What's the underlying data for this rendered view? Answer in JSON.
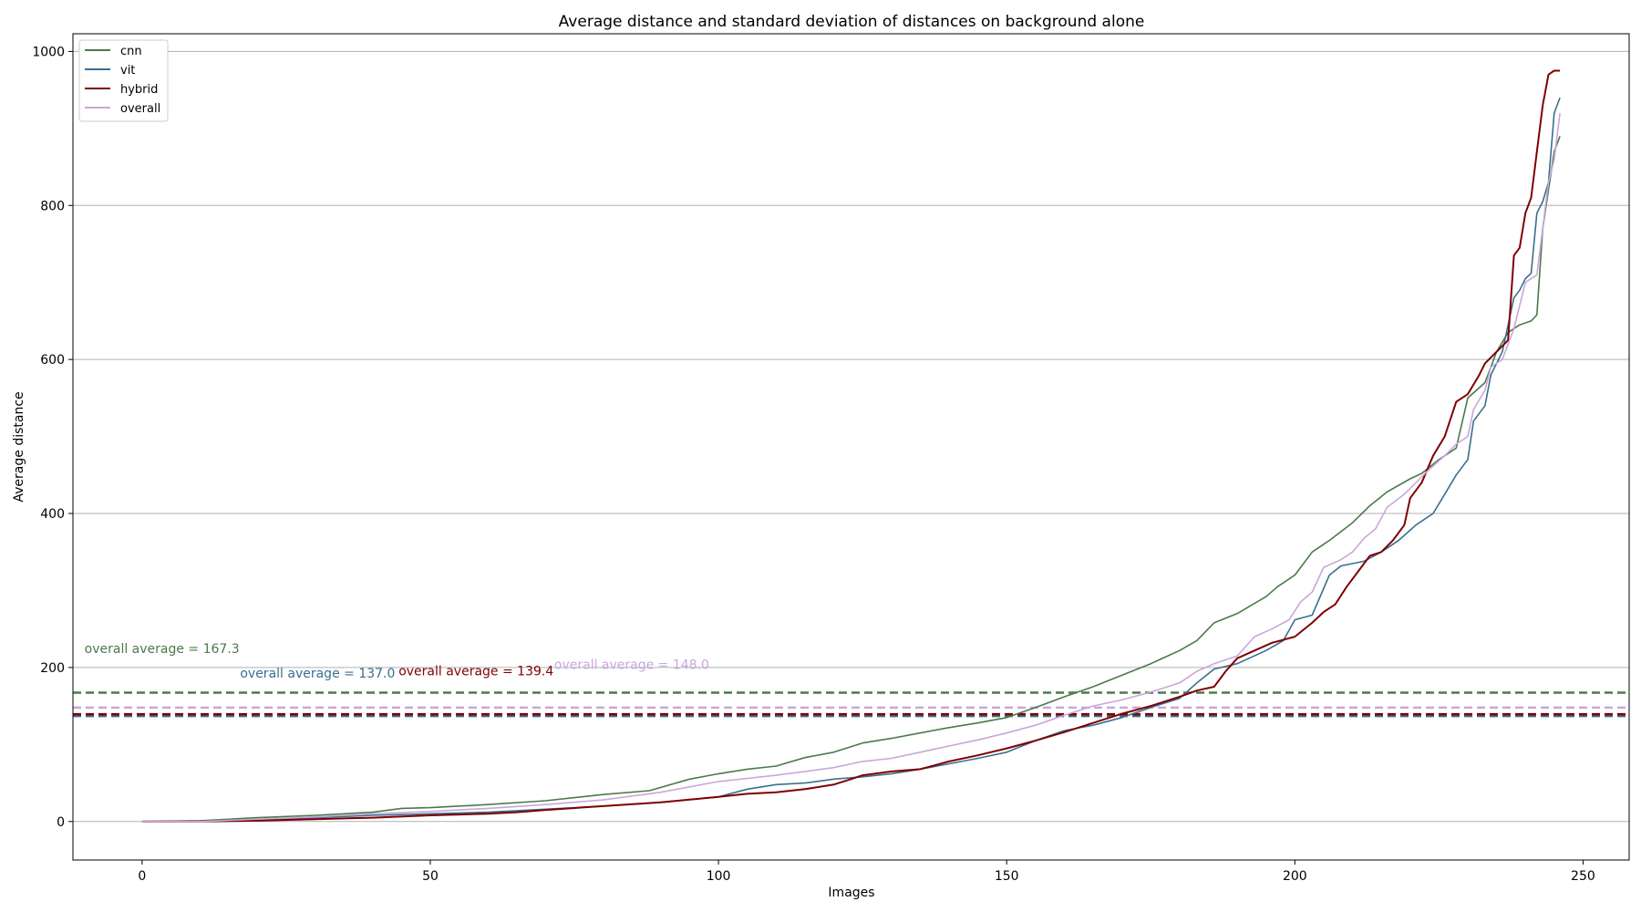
{
  "chart_data": {
    "type": "line",
    "title": "Average distance and standard deviation of distances on background alone",
    "xlabel": "Images",
    "ylabel": "Average distance",
    "xlim": [
      -12,
      258
    ],
    "ylim": [
      -50,
      1023
    ],
    "xticks": [
      0,
      50,
      100,
      150,
      200,
      250
    ],
    "yticks": [
      0,
      200,
      400,
      600,
      800,
      1000
    ],
    "grid": "horizontal",
    "legend_position": "top-left",
    "series": [
      {
        "name": "cnn",
        "color": "#4a7a4a",
        "points": [
          [
            0,
            0
          ],
          [
            10,
            1
          ],
          [
            20,
            5
          ],
          [
            30,
            8
          ],
          [
            40,
            12
          ],
          [
            45,
            17
          ],
          [
            50,
            18
          ],
          [
            60,
            22
          ],
          [
            70,
            27
          ],
          [
            80,
            35
          ],
          [
            88,
            40
          ],
          [
            95,
            55
          ],
          [
            100,
            62
          ],
          [
            105,
            68
          ],
          [
            110,
            72
          ],
          [
            115,
            83
          ],
          [
            120,
            90
          ],
          [
            125,
            102
          ],
          [
            130,
            108
          ],
          [
            135,
            115
          ],
          [
            140,
            122
          ],
          [
            145,
            128
          ],
          [
            150,
            135
          ],
          [
            155,
            148
          ],
          [
            160,
            162
          ],
          [
            165,
            175
          ],
          [
            170,
            190
          ],
          [
            175,
            205
          ],
          [
            180,
            222
          ],
          [
            183,
            235
          ],
          [
            186,
            258
          ],
          [
            190,
            270
          ],
          [
            195,
            292
          ],
          [
            197,
            305
          ],
          [
            200,
            320
          ],
          [
            203,
            350
          ],
          [
            206,
            365
          ],
          [
            210,
            388
          ],
          [
            213,
            410
          ],
          [
            216,
            428
          ],
          [
            220,
            445
          ],
          [
            222,
            452
          ],
          [
            225,
            470
          ],
          [
            228,
            485
          ],
          [
            230,
            550
          ],
          [
            233,
            570
          ],
          [
            235,
            610
          ],
          [
            237,
            635
          ],
          [
            239,
            645
          ],
          [
            241,
            650
          ],
          [
            242,
            658
          ],
          [
            243,
            770
          ],
          [
            244,
            820
          ],
          [
            245,
            870
          ],
          [
            246,
            890
          ]
        ]
      },
      {
        "name": "vit",
        "color": "#3a6f8f",
        "points": [
          [
            0,
            0
          ],
          [
            10,
            0
          ],
          [
            20,
            2
          ],
          [
            30,
            5
          ],
          [
            40,
            8
          ],
          [
            50,
            10
          ],
          [
            60,
            12
          ],
          [
            70,
            16
          ],
          [
            80,
            20
          ],
          [
            90,
            25
          ],
          [
            100,
            32
          ],
          [
            105,
            42
          ],
          [
            110,
            48
          ],
          [
            115,
            50
          ],
          [
            120,
            55
          ],
          [
            125,
            58
          ],
          [
            130,
            62
          ],
          [
            135,
            68
          ],
          [
            140,
            75
          ],
          [
            145,
            82
          ],
          [
            150,
            90
          ],
          [
            155,
            105
          ],
          [
            160,
            118
          ],
          [
            165,
            125
          ],
          [
            170,
            135
          ],
          [
            175,
            148
          ],
          [
            180,
            160
          ],
          [
            183,
            180
          ],
          [
            186,
            198
          ],
          [
            190,
            205
          ],
          [
            195,
            222
          ],
          [
            198,
            235
          ],
          [
            200,
            262
          ],
          [
            203,
            268
          ],
          [
            206,
            320
          ],
          [
            208,
            332
          ],
          [
            212,
            338
          ],
          [
            215,
            350
          ],
          [
            218,
            365
          ],
          [
            221,
            385
          ],
          [
            224,
            400
          ],
          [
            226,
            425
          ],
          [
            228,
            450
          ],
          [
            230,
            470
          ],
          [
            231,
            520
          ],
          [
            233,
            540
          ],
          [
            234,
            580
          ],
          [
            236,
            610
          ],
          [
            238,
            680
          ],
          [
            239,
            690
          ],
          [
            240,
            705
          ],
          [
            241,
            712
          ],
          [
            242,
            790
          ],
          [
            243,
            805
          ],
          [
            244,
            830
          ],
          [
            245,
            920
          ],
          [
            246,
            940
          ]
        ]
      },
      {
        "name": "hybrid",
        "color": "#7f0000",
        "points": [
          [
            0,
            0
          ],
          [
            10,
            0
          ],
          [
            20,
            1
          ],
          [
            30,
            3
          ],
          [
            40,
            5
          ],
          [
            50,
            8
          ],
          [
            60,
            10
          ],
          [
            65,
            12
          ],
          [
            70,
            15
          ],
          [
            80,
            20
          ],
          [
            90,
            25
          ],
          [
            100,
            32
          ],
          [
            105,
            36
          ],
          [
            110,
            38
          ],
          [
            115,
            42
          ],
          [
            120,
            48
          ],
          [
            123,
            55
          ],
          [
            125,
            60
          ],
          [
            130,
            65
          ],
          [
            135,
            68
          ],
          [
            140,
            78
          ],
          [
            145,
            86
          ],
          [
            150,
            95
          ],
          [
            155,
            105
          ],
          [
            160,
            116
          ],
          [
            165,
            128
          ],
          [
            170,
            140
          ],
          [
            175,
            150
          ],
          [
            180,
            162
          ],
          [
            183,
            170
          ],
          [
            186,
            175
          ],
          [
            188,
            195
          ],
          [
            190,
            212
          ],
          [
            193,
            222
          ],
          [
            196,
            232
          ],
          [
            200,
            240
          ],
          [
            203,
            258
          ],
          [
            205,
            272
          ],
          [
            207,
            282
          ],
          [
            209,
            305
          ],
          [
            211,
            325
          ],
          [
            213,
            345
          ],
          [
            215,
            350
          ],
          [
            217,
            365
          ],
          [
            219,
            385
          ],
          [
            220,
            420
          ],
          [
            222,
            440
          ],
          [
            224,
            475
          ],
          [
            226,
            500
          ],
          [
            228,
            545
          ],
          [
            230,
            555
          ],
          [
            232,
            580
          ],
          [
            233,
            595
          ],
          [
            235,
            610
          ],
          [
            237,
            625
          ],
          [
            238,
            735
          ],
          [
            239,
            745
          ],
          [
            240,
            790
          ],
          [
            241,
            810
          ],
          [
            242,
            870
          ],
          [
            243,
            930
          ],
          [
            244,
            970
          ],
          [
            245,
            975
          ],
          [
            246,
            975
          ]
        ]
      },
      {
        "name": "overall",
        "color": "#c9a6dc",
        "points": [
          [
            0,
            0
          ],
          [
            10,
            0
          ],
          [
            20,
            3
          ],
          [
            30,
            6
          ],
          [
            40,
            10
          ],
          [
            50,
            13
          ],
          [
            60,
            17
          ],
          [
            70,
            22
          ],
          [
            80,
            28
          ],
          [
            90,
            38
          ],
          [
            100,
            52
          ],
          [
            105,
            56
          ],
          [
            110,
            60
          ],
          [
            115,
            65
          ],
          [
            120,
            70
          ],
          [
            125,
            78
          ],
          [
            130,
            82
          ],
          [
            135,
            90
          ],
          [
            140,
            98
          ],
          [
            145,
            106
          ],
          [
            150,
            115
          ],
          [
            155,
            125
          ],
          [
            160,
            138
          ],
          [
            165,
            150
          ],
          [
            170,
            158
          ],
          [
            175,
            168
          ],
          [
            180,
            180
          ],
          [
            183,
            195
          ],
          [
            186,
            205
          ],
          [
            190,
            215
          ],
          [
            193,
            240
          ],
          [
            196,
            250
          ],
          [
            199,
            262
          ],
          [
            201,
            285
          ],
          [
            203,
            298
          ],
          [
            205,
            330
          ],
          [
            208,
            340
          ],
          [
            210,
            350
          ],
          [
            212,
            368
          ],
          [
            214,
            380
          ],
          [
            216,
            408
          ],
          [
            219,
            425
          ],
          [
            221,
            440
          ],
          [
            223,
            455
          ],
          [
            226,
            475
          ],
          [
            228,
            490
          ],
          [
            230,
            500
          ],
          [
            231,
            535
          ],
          [
            233,
            560
          ],
          [
            234,
            590
          ],
          [
            236,
            600
          ],
          [
            238,
            640
          ],
          [
            240,
            700
          ],
          [
            242,
            710
          ],
          [
            244,
            830
          ],
          [
            245,
            860
          ],
          [
            246,
            920
          ]
        ]
      }
    ],
    "reference_lines": [
      {
        "series": "cnn",
        "value": 167.3,
        "color": "#4a7a4a",
        "label": "overall average = 167.3",
        "label_x": -10,
        "label_y": 225
      },
      {
        "series": "vit",
        "value": 137.0,
        "color": "#3a6f8f",
        "label": "overall average = 137.0",
        "label_x": 17,
        "label_y": 193
      },
      {
        "series": "hybrid",
        "value": 139.4,
        "color": "#7f0000",
        "label": "overall average = 139.4",
        "label_x": 44.5,
        "label_y": 196
      },
      {
        "series": "overall",
        "value": 148.0,
        "color": "#c9a6dc",
        "label": "overall average = 148.0",
        "label_x": 71.5,
        "label_y": 204
      }
    ]
  }
}
